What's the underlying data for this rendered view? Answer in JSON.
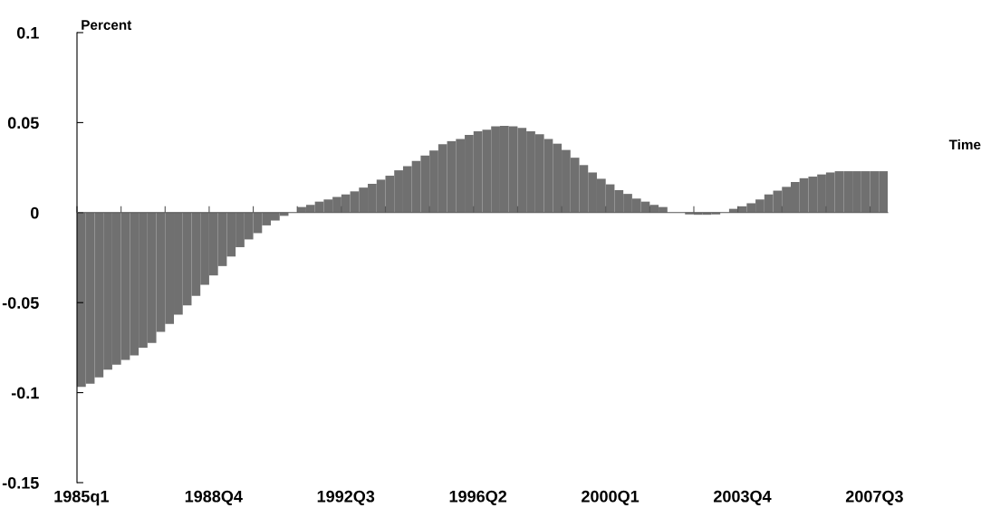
{
  "chart_data": {
    "type": "bar",
    "ylabel": "Percent",
    "xlabel": "Time",
    "categories": [
      "1985q1",
      null,
      null,
      null,
      null,
      null,
      null,
      null,
      null,
      null,
      null,
      null,
      null,
      null,
      null,
      "1988Q4",
      null,
      null,
      null,
      null,
      null,
      null,
      null,
      null,
      null,
      null,
      null,
      null,
      null,
      null,
      "1992Q3",
      null,
      null,
      null,
      null,
      null,
      null,
      null,
      null,
      null,
      null,
      null,
      null,
      null,
      null,
      "1996Q2",
      null,
      null,
      null,
      null,
      null,
      null,
      null,
      null,
      null,
      null,
      null,
      null,
      null,
      null,
      "2000Q1",
      null,
      null,
      null,
      null,
      null,
      null,
      null,
      null,
      null,
      null,
      null,
      null,
      null,
      null,
      "2003Q4",
      null,
      null,
      null,
      null,
      null,
      null,
      null,
      null,
      null,
      null,
      null,
      null,
      null,
      null,
      "2007Q3",
      null
    ],
    "values": [
      -0.0968,
      -0.095,
      -0.0915,
      -0.0872,
      -0.0845,
      -0.0819,
      -0.0793,
      -0.075,
      -0.0724,
      -0.0663,
      -0.0619,
      -0.0567,
      -0.0515,
      -0.0463,
      -0.0401,
      -0.0349,
      -0.0297,
      -0.0244,
      -0.0192,
      -0.0149,
      -0.0114,
      -0.0071,
      -0.0044,
      -0.0018,
      0.0,
      0.0031,
      0.0043,
      0.0061,
      0.0073,
      0.0087,
      0.0101,
      0.0118,
      0.0139,
      0.016,
      0.0183,
      0.0205,
      0.0235,
      0.0258,
      0.0287,
      0.0317,
      0.0345,
      0.038,
      0.0397,
      0.0409,
      0.0432,
      0.0452,
      0.0461,
      0.0479,
      0.0482,
      0.0479,
      0.047,
      0.0452,
      0.0435,
      0.0409,
      0.0383,
      0.0348,
      0.0305,
      0.0264,
      0.0223,
      0.0188,
      0.0157,
      0.0125,
      0.0104,
      0.0078,
      0.0061,
      0.0043,
      0.0031,
      0.0,
      0.0,
      -0.001,
      -0.0012,
      -0.0012,
      -0.001,
      0.0,
      0.0021,
      0.0035,
      0.0052,
      0.0073,
      0.0101,
      0.0122,
      0.0143,
      0.017,
      0.0191,
      0.02,
      0.0212,
      0.0223,
      0.023,
      0.023,
      0.023,
      0.023,
      0.023,
      0.023
    ],
    "color": "#707070",
    "ylim": [
      -0.15,
      0.1
    ],
    "yticks": [
      -0.15,
      -0.1,
      -0.05,
      0,
      0.05,
      0.1
    ]
  }
}
